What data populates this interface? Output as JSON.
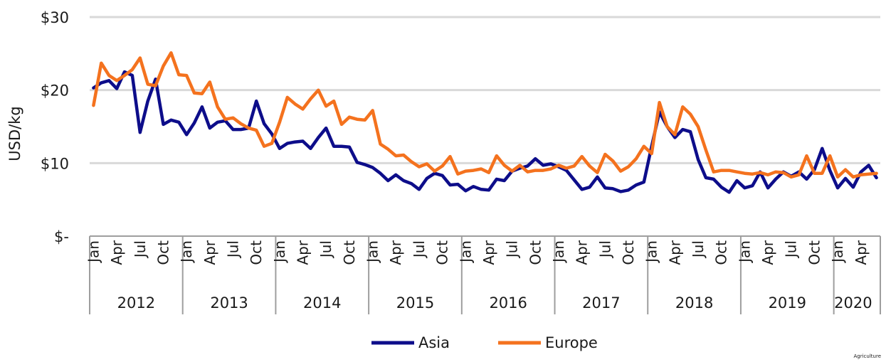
{
  "chart_data": {
    "type": "line",
    "title": "",
    "xlabel": "",
    "ylabel": "USD/kg",
    "ylim": [
      0,
      30
    ],
    "y_ticks": [
      {
        "value": 0,
        "label": "$-"
      },
      {
        "value": 10,
        "label": "$10"
      },
      {
        "value": 20,
        "label": "$20"
      },
      {
        "value": 30,
        "label": "$30"
      }
    ],
    "grid": true,
    "years": [
      {
        "label": "2012",
        "start": 0,
        "months": 12
      },
      {
        "label": "2013",
        "start": 12,
        "months": 12
      },
      {
        "label": "2014",
        "start": 24,
        "months": 12
      },
      {
        "label": "2015",
        "start": 36,
        "months": 12
      },
      {
        "label": "2016",
        "start": 48,
        "months": 12
      },
      {
        "label": "2017",
        "start": 60,
        "months": 12
      },
      {
        "label": "2018",
        "start": 72,
        "months": 12
      },
      {
        "label": "2019",
        "start": 84,
        "months": 12
      },
      {
        "label": "2020",
        "start": 96,
        "months": 5
      }
    ],
    "month_ticks": [
      {
        "i": 0,
        "label": "Jan"
      },
      {
        "i": 3,
        "label": "Apr"
      },
      {
        "i": 6,
        "label": "Jul"
      },
      {
        "i": 9,
        "label": "Oct"
      },
      {
        "i": 12,
        "label": "Jan"
      },
      {
        "i": 15,
        "label": "Apr"
      },
      {
        "i": 18,
        "label": "Jul"
      },
      {
        "i": 21,
        "label": "Oct"
      },
      {
        "i": 24,
        "label": "Jan"
      },
      {
        "i": 27,
        "label": "Apr"
      },
      {
        "i": 30,
        "label": "Jul"
      },
      {
        "i": 33,
        "label": "Oct"
      },
      {
        "i": 36,
        "label": "Jan"
      },
      {
        "i": 39,
        "label": "Apr"
      },
      {
        "i": 42,
        "label": "Jul"
      },
      {
        "i": 45,
        "label": "Oct"
      },
      {
        "i": 48,
        "label": "Jan"
      },
      {
        "i": 51,
        "label": "Apr"
      },
      {
        "i": 54,
        "label": "Jul"
      },
      {
        "i": 57,
        "label": "Oct"
      },
      {
        "i": 60,
        "label": "Jan"
      },
      {
        "i": 63,
        "label": "Apr"
      },
      {
        "i": 66,
        "label": "Jul"
      },
      {
        "i": 69,
        "label": "Oct"
      },
      {
        "i": 72,
        "label": "Jan"
      },
      {
        "i": 75,
        "label": "Apr"
      },
      {
        "i": 78,
        "label": "Jul"
      },
      {
        "i": 81,
        "label": "Oct"
      },
      {
        "i": 84,
        "label": "Jan"
      },
      {
        "i": 87,
        "label": "Apr"
      },
      {
        "i": 90,
        "label": "Jul"
      },
      {
        "i": 93,
        "label": "Oct"
      },
      {
        "i": 96,
        "label": "Jan"
      },
      {
        "i": 99,
        "label": "Apr"
      }
    ],
    "series": [
      {
        "name": "Asia",
        "color": "#0d0d8a",
        "values": [
          20.3,
          21.0,
          21.3,
          20.2,
          22.5,
          22.0,
          14.2,
          18.5,
          21.5,
          15.3,
          15.9,
          15.6,
          13.9,
          15.5,
          17.7,
          14.8,
          15.6,
          15.8,
          14.6,
          14.6,
          14.8,
          18.5,
          15.4,
          14.0,
          12.0,
          12.7,
          12.9,
          13.0,
          12.0,
          13.5,
          14.8,
          12.3,
          12.3,
          12.2,
          10.1,
          9.8,
          9.4,
          8.6,
          7.6,
          8.4,
          7.6,
          7.2,
          6.4,
          7.9,
          8.6,
          8.3,
          7.0,
          7.1,
          6.2,
          6.8,
          6.4,
          6.3,
          7.8,
          7.6,
          8.9,
          9.3,
          9.6,
          10.6,
          9.7,
          9.9,
          9.5,
          9.0,
          7.7,
          6.4,
          6.7,
          8.1,
          6.6,
          6.5,
          6.1,
          6.3,
          7.0,
          7.4,
          12.3,
          17.0,
          15.0,
          13.5,
          14.6,
          14.3,
          10.5,
          8.0,
          7.8,
          6.7,
          6.0,
          7.6,
          6.6,
          6.9,
          8.8,
          6.6,
          7.8,
          8.8,
          8.2,
          8.8,
          7.8,
          9.1,
          12.0,
          9.0,
          6.6,
          7.9,
          6.7,
          8.8,
          9.7,
          8.0
        ]
      },
      {
        "name": "Europe",
        "color": "#f4721e",
        "values": [
          17.9,
          23.7,
          22.0,
          21.3,
          22.0,
          22.8,
          24.4,
          20.8,
          20.6,
          23.3,
          25.1,
          22.1,
          22.0,
          19.6,
          19.5,
          21.1,
          17.7,
          16.0,
          16.2,
          15.4,
          14.8,
          14.5,
          12.3,
          12.7,
          15.6,
          19.0,
          18.1,
          17.4,
          18.8,
          20.0,
          17.8,
          18.5,
          15.3,
          16.3,
          16.0,
          15.9,
          17.2,
          12.6,
          11.9,
          11.0,
          11.1,
          10.2,
          9.5,
          9.9,
          8.9,
          9.6,
          10.9,
          8.5,
          8.9,
          9.0,
          9.2,
          8.7,
          11.0,
          9.7,
          8.9,
          9.7,
          8.8,
          9.0,
          9.0,
          9.2,
          9.7,
          9.3,
          9.6,
          10.9,
          9.6,
          8.7,
          11.2,
          10.3,
          8.9,
          9.5,
          10.6,
          12.3,
          11.3,
          18.3,
          15.0,
          13.9,
          17.7,
          16.7,
          15.0,
          11.8,
          8.8,
          9.0,
          9.0,
          8.8,
          8.6,
          8.5,
          8.7,
          8.4,
          8.8,
          8.7,
          8.1,
          8.4,
          11.0,
          8.6,
          8.6,
          11.0,
          8.1,
          9.1,
          8.1,
          8.4,
          8.5,
          8.6
        ]
      }
    ],
    "legend": {
      "position": "bottom-center"
    }
  },
  "footer": {
    "text": "Agriculture"
  }
}
